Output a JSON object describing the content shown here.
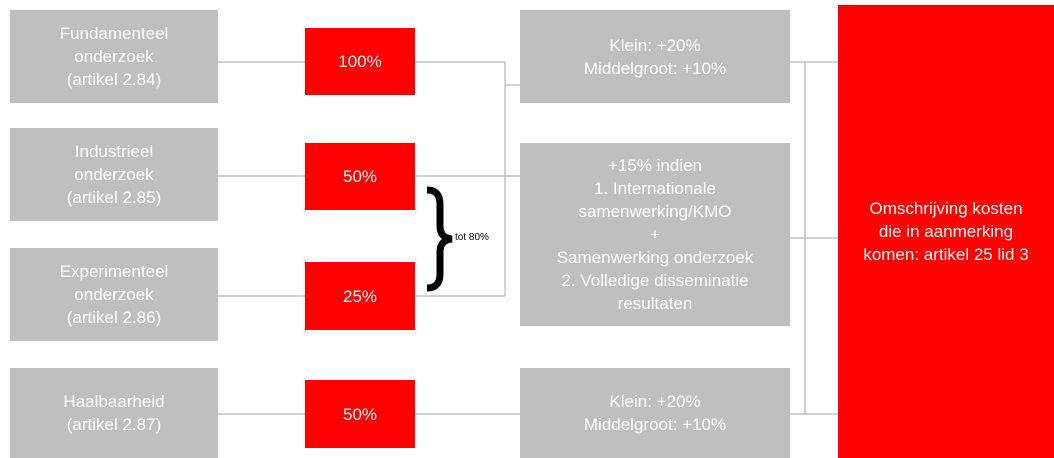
{
  "left": [
    {
      "lines": [
        "Fundamenteel",
        "onderzoek",
        "(artikel 2.84)"
      ]
    },
    {
      "lines": [
        "Industrieel",
        "onderzoek",
        "(artikel 2.85)"
      ]
    },
    {
      "lines": [
        "Experimenteel",
        "onderzoek",
        "(artikel 2.86)"
      ]
    },
    {
      "lines": [
        "Haalbaarheid",
        "(artikel 2.87)"
      ]
    }
  ],
  "rates": [
    "100%",
    "50%",
    "25%",
    "50%"
  ],
  "brace_label": "tot 80%",
  "middle": [
    {
      "lines": [
        "Klein: +20%",
        "Middelgroot: +10%"
      ]
    },
    {
      "lines": [
        "+15% indien",
        "1.   Internationale",
        "samenwerking/KMO",
        "+",
        "Samenwerking onderzoek",
        "2. Volledige disseminatie",
        "resultaten"
      ]
    },
    {
      "lines": [
        "Klein: +20%",
        "Middelgroot: +10%"
      ]
    }
  ],
  "right": {
    "lines": [
      "Omschrijving kosten",
      "die in aanmerking",
      "komen: artikel 25 lid 3"
    ]
  }
}
